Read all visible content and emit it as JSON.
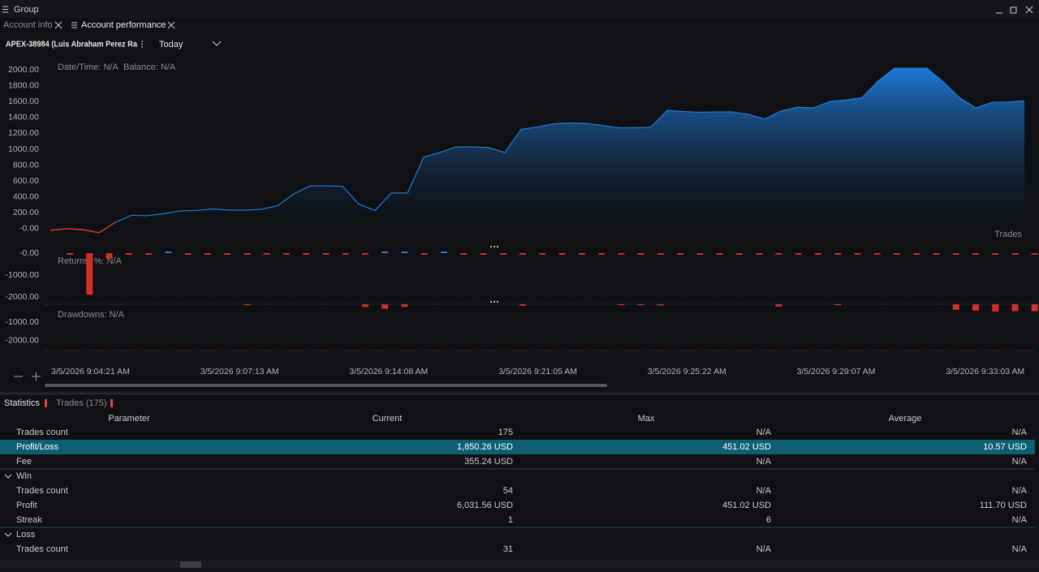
{
  "window": {
    "title": "Group"
  },
  "tabs": [
    "Account info",
    "Account performance"
  ],
  "toolbar": {
    "account": "APEX-38984 (Luis Abraham Perez Ra",
    "period": "Today"
  },
  "balance_chart": {
    "type": "area",
    "info": [
      "Date/Time: N/A",
      "Balance: N/A"
    ],
    "label": "Trades",
    "color": "#1e7ad6",
    "negative_color": "#d0302a",
    "ylim": [
      -180,
      2200
    ],
    "yticks": [
      {
        "value": 0,
        "label": "-0.00"
      },
      {
        "value": 200,
        "label": "200.00"
      },
      {
        "value": 400,
        "label": "400.00"
      },
      {
        "value": 600,
        "label": "600.00"
      },
      {
        "value": 800,
        "label": "800.00"
      },
      {
        "value": 1000,
        "label": "1000.00"
      },
      {
        "value": 1200,
        "label": "1200.00"
      },
      {
        "value": 1400,
        "label": "1400.00"
      },
      {
        "value": 1600,
        "label": "1600.00"
      },
      {
        "value": 1800,
        "label": "1800.00"
      },
      {
        "value": 2000,
        "label": "2000.00"
      }
    ],
    "values": [
      -20,
      0,
      -10,
      -50,
      80,
      170,
      165,
      190,
      225,
      230,
      250,
      235,
      235,
      245,
      290,
      440,
      540,
      540,
      535,
      310,
      230,
      450,
      450,
      900,
      960,
      1030,
      1030,
      1020,
      960,
      1250,
      1280,
      1320,
      1330,
      1325,
      1300,
      1270,
      1270,
      1280,
      1490,
      1475,
      1465,
      1470,
      1470,
      1440,
      1380,
      1480,
      1530,
      1520,
      1600,
      1620,
      1650,
      1860,
      2020,
      2020,
      2020,
      1850,
      1650,
      1520,
      1590,
      1595,
      1610
    ]
  },
  "returns_chart": {
    "type": "bar",
    "info": "Returns, %: N/A",
    "positive_color": "#2f7fd8",
    "negative_color": "#d0302a",
    "ylim": [
      -2300,
      370
    ],
    "yticks": [
      {
        "value": 0,
        "label": "-0.00"
      },
      {
        "value": -1000,
        "label": "-1000.00"
      },
      {
        "value": -2000,
        "label": "-2000.00"
      }
    ],
    "values": [
      -70,
      -1900,
      -250,
      -70,
      -70,
      70,
      -70,
      -70,
      -70,
      -70,
      -70,
      -70,
      -70,
      -70,
      -70,
      -70,
      70,
      70,
      -70,
      70,
      -70,
      -70,
      -70,
      -70,
      -70,
      -70,
      -70,
      -70,
      -70,
      -70,
      -70,
      -70,
      -70,
      -70,
      -70,
      -70,
      -70,
      -70,
      -70,
      -70,
      -70,
      -70,
      -70,
      -70,
      -70,
      -70,
      -70,
      -70,
      -70,
      -70
    ]
  },
  "drawdowns_chart": {
    "type": "bar",
    "info": "Drawdowns: N/A",
    "color": "#d0302a",
    "ylim": [
      -2500,
      0
    ],
    "yticks": [
      {
        "value": -1000,
        "label": "-1000.00"
      },
      {
        "value": -2000,
        "label": "-2000.00"
      }
    ],
    "values": [
      0,
      0,
      0,
      0,
      0,
      0,
      0,
      0,
      0,
      -50,
      0,
      0,
      0,
      0,
      0,
      -150,
      -250,
      -150,
      0,
      0,
      0,
      0,
      0,
      -80,
      0,
      0,
      0,
      0,
      -50,
      -50,
      -60,
      0,
      0,
      0,
      0,
      0,
      -130,
      0,
      0,
      -50,
      0,
      0,
      0,
      0,
      0,
      -300,
      -350,
      -400,
      -380,
      -380
    ]
  },
  "x_labels": [
    "3/5/2026 9:04:21 AM",
    "3/5/2026 9:07:13 AM",
    "3/5/2026 9:14:08 AM",
    "3/5/2026 9:21:05 AM",
    "3/5/2026 9:25:22 AM",
    "3/5/2026 9:29:07 AM",
    "3/5/2026 9:33:03 AM"
  ],
  "statistics": {
    "tabs": [
      "Statistics",
      "Trades (175)"
    ],
    "columns": [
      "Parameter",
      "Current",
      "Max",
      "Average"
    ],
    "rows": [
      {
        "cells": [
          "Trades count",
          "175",
          "N/A",
          "N/A"
        ]
      },
      {
        "cells": [
          "Profit/Loss",
          "1,850.26 USD",
          "451.02 USD",
          "10.57 USD"
        ],
        "selected": true
      },
      {
        "cells": [
          "Fee",
          "355.24 USD",
          "N/A",
          "N/A"
        ]
      },
      {
        "group": "Win"
      },
      {
        "cells": [
          "Trades count",
          "54",
          "N/A",
          "N/A"
        ]
      },
      {
        "cells": [
          "Profit",
          "6,031.56 USD",
          "451.02 USD",
          "111.70 USD"
        ]
      },
      {
        "cells": [
          "Streak",
          "1",
          "6",
          "N/A"
        ]
      },
      {
        "group": "Loss"
      },
      {
        "cells": [
          "Trades count",
          "31",
          "N/A",
          "N/A"
        ]
      }
    ]
  }
}
